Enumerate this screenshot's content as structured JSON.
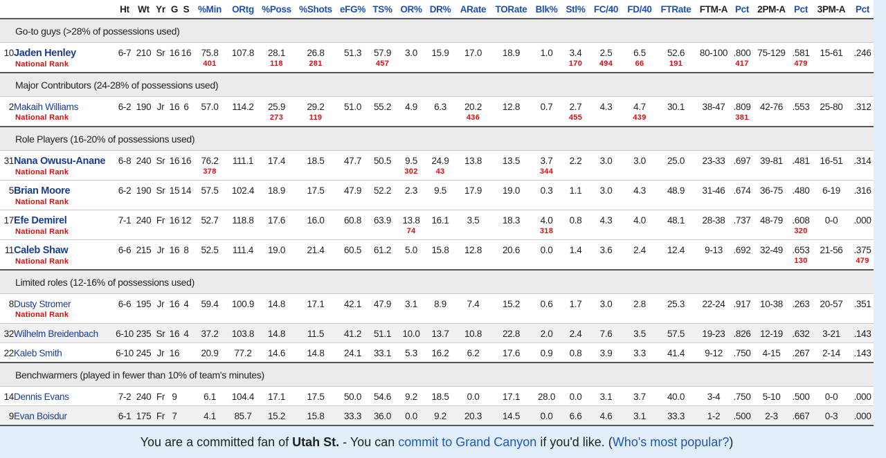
{
  "header": [
    "Ht",
    "Wt",
    "Yr",
    "G",
    "S",
    "%Min",
    "ORtg",
    "%Poss",
    "%Shots",
    "eFG%",
    "TS%",
    "OR%",
    "DR%",
    "ARate",
    "TORate",
    "Blk%",
    "Stl%",
    "FC/40",
    "FD/40",
    "FTRate",
    "FTM-A",
    "Pct",
    "2PM-A",
    "Pct",
    "3PM-A",
    "Pct"
  ],
  "groups": [
    {
      "label": "Go-to guys (>28% of possessions used)",
      "players": [
        {
          "number": "10",
          "name": "Jaden Henley",
          "bold": true,
          "ht": "6-7",
          "wt": "210",
          "yr": "Sr",
          "g": "16",
          "s": "16",
          "stats": [
            "75.8",
            "107.8",
            "28.1",
            "26.8",
            "51.3",
            "57.9",
            "3.0",
            "15.9",
            "17.0",
            "18.9",
            "1.0",
            "3.4",
            "2.5",
            "6.5",
            "52.6",
            "80-100",
            ".800",
            "75-129",
            ".581",
            "15-61",
            ".246"
          ],
          "rank_label": "National Rank",
          "ranks": [
            "401",
            null,
            "118",
            "281",
            null,
            "457",
            null,
            null,
            null,
            null,
            null,
            "170",
            "494",
            "66",
            "191",
            null,
            "417",
            null,
            "479",
            null,
            null
          ]
        }
      ]
    },
    {
      "label": "Major Contributors (24-28% of possessions used)",
      "players": [
        {
          "number": "2",
          "name": "Makaih Williams",
          "bold": false,
          "ht": "6-2",
          "wt": "190",
          "yr": "Jr",
          "g": "16",
          "s": "6",
          "stats": [
            "57.0",
            "114.2",
            "25.9",
            "29.2",
            "51.0",
            "55.2",
            "4.9",
            "6.3",
            "20.2",
            "12.8",
            "0.7",
            "2.7",
            "4.3",
            "4.7",
            "30.1",
            "38-47",
            ".809",
            "42-76",
            ".553",
            "25-80",
            ".312"
          ],
          "rank_label": "National Rank",
          "ranks": [
            null,
            null,
            "273",
            "119",
            null,
            null,
            null,
            null,
            "436",
            null,
            null,
            "455",
            null,
            "439",
            null,
            null,
            "381",
            null,
            null,
            null,
            null
          ]
        }
      ]
    },
    {
      "label": "Role Players (16-20% of possessions used)",
      "players": [
        {
          "number": "31",
          "name": "Nana Owusu-Anane",
          "bold": true,
          "ht": "6-8",
          "wt": "240",
          "yr": "Sr",
          "g": "16",
          "s": "16",
          "stats": [
            "76.2",
            "111.1",
            "17.4",
            "18.5",
            "47.7",
            "50.5",
            "9.5",
            "24.9",
            "13.8",
            "13.5",
            "3.7",
            "2.2",
            "3.0",
            "3.0",
            "25.0",
            "23-33",
            ".697",
            "39-81",
            ".481",
            "16-51",
            ".314"
          ],
          "rank_label": "National Rank",
          "ranks": [
            "378",
            null,
            null,
            null,
            null,
            null,
            "302",
            "43",
            null,
            null,
            "344",
            null,
            null,
            null,
            null,
            null,
            null,
            null,
            null,
            null,
            null
          ]
        },
        {
          "number": "5",
          "name": "Brian Moore",
          "bold": true,
          "ht": "6-2",
          "wt": "190",
          "yr": "Sr",
          "g": "15",
          "s": "14",
          "stats": [
            "57.5",
            "102.4",
            "18.9",
            "17.5",
            "47.9",
            "52.2",
            "2.3",
            "9.5",
            "17.9",
            "19.0",
            "0.3",
            "1.1",
            "3.0",
            "4.3",
            "48.9",
            "31-46",
            ".674",
            "36-75",
            ".480",
            "6-19",
            ".316"
          ],
          "rank_label": "National Rank",
          "ranks": [
            null,
            null,
            null,
            null,
            null,
            null,
            null,
            null,
            null,
            null,
            null,
            null,
            null,
            null,
            null,
            null,
            null,
            null,
            null,
            null,
            null
          ]
        },
        {
          "number": "17",
          "name": "Efe Demirel",
          "bold": true,
          "ht": "7-1",
          "wt": "240",
          "yr": "Fr",
          "g": "16",
          "s": "12",
          "stats": [
            "52.7",
            "118.8",
            "17.6",
            "16.0",
            "60.8",
            "63.9",
            "13.8",
            "16.1",
            "3.5",
            "18.3",
            "4.0",
            "0.8",
            "4.3",
            "4.0",
            "48.1",
            "28-38",
            ".737",
            "48-79",
            ".608",
            "0-0",
            ".000"
          ],
          "rank_label": "National Rank",
          "ranks": [
            null,
            null,
            null,
            null,
            null,
            null,
            "74",
            null,
            null,
            null,
            "318",
            null,
            null,
            null,
            null,
            null,
            null,
            null,
            "320",
            null,
            null
          ]
        },
        {
          "number": "11",
          "name": "Caleb Shaw",
          "bold": true,
          "ht": "6-6",
          "wt": "215",
          "yr": "Jr",
          "g": "16",
          "s": "8",
          "stats": [
            "52.5",
            "111.4",
            "19.0",
            "21.4",
            "60.5",
            "61.2",
            "5.0",
            "15.8",
            "12.8",
            "20.6",
            "0.0",
            "1.4",
            "3.6",
            "2.4",
            "12.4",
            "9-13",
            ".692",
            "32-49",
            ".653",
            "21-56",
            ".375"
          ],
          "rank_label": "National Rank",
          "ranks": [
            null,
            null,
            null,
            null,
            null,
            null,
            null,
            null,
            null,
            null,
            null,
            null,
            null,
            null,
            null,
            null,
            null,
            null,
            "130",
            null,
            "479"
          ]
        }
      ]
    },
    {
      "label": "Limited roles (12-16% of possessions used)",
      "players": [
        {
          "number": "8",
          "name": "Dusty Stromer",
          "bold": false,
          "ht": "6-6",
          "wt": "195",
          "yr": "Jr",
          "g": "16",
          "s": "4",
          "stats": [
            "59.4",
            "100.9",
            "14.8",
            "17.1",
            "42.1",
            "47.9",
            "3.1",
            "8.9",
            "7.4",
            "15.2",
            "0.6",
            "1.7",
            "3.0",
            "2.8",
            "25.3",
            "22-24",
            ".917",
            "10-38",
            ".263",
            "20-57",
            ".351"
          ],
          "rank_label": "National Rank",
          "ranks": [
            null,
            null,
            null,
            null,
            null,
            null,
            null,
            null,
            null,
            null,
            null,
            null,
            null,
            null,
            null,
            null,
            null,
            null,
            null,
            null,
            null
          ]
        },
        {
          "number": "32",
          "name": "Wilhelm Breidenbach",
          "bold": false,
          "ht": "6-10",
          "wt": "235",
          "yr": "Sr",
          "g": "16",
          "s": "4",
          "stats": [
            "37.2",
            "103.8",
            "14.8",
            "11.5",
            "41.2",
            "51.1",
            "10.0",
            "13.7",
            "10.8",
            "22.8",
            "2.0",
            "2.4",
            "7.6",
            "3.5",
            "57.5",
            "19-23",
            ".826",
            "12-19",
            ".632",
            "3-21",
            ".143"
          ]
        },
        {
          "number": "22",
          "name": "Kaleb Smith",
          "bold": false,
          "ht": "6-10",
          "wt": "245",
          "yr": "Jr",
          "g": "16",
          "s": null,
          "stats": [
            "20.9",
            "77.2",
            "14.6",
            "14.8",
            "24.1",
            "33.1",
            "5.3",
            "16.2",
            "6.2",
            "17.6",
            "0.9",
            "0.8",
            "3.9",
            "3.3",
            "41.4",
            "9-12",
            ".750",
            "4-15",
            ".267",
            "2-14",
            ".143"
          ]
        }
      ]
    },
    {
      "label": "Benchwarmers (played in fewer than 10% of team's minutes)",
      "players": [
        {
          "number": "14",
          "name": "Dennis Evans",
          "bold": false,
          "ht": "7-2",
          "wt": "240",
          "yr": "Fr",
          "g": "9",
          "s": null,
          "stats": [
            "6.1",
            "104.4",
            "17.1",
            "17.5",
            "50.0",
            "54.6",
            "9.2",
            "18.5",
            "0.0",
            "17.1",
            "28.0",
            "0.0",
            "3.1",
            "3.7",
            "40.0",
            "3-4",
            ".750",
            "5-10",
            ".500",
            "0-0",
            ".000"
          ]
        },
        {
          "number": "9",
          "name": "Evan Boisdur",
          "bold": false,
          "ht": "6-1",
          "wt": "175",
          "yr": "Fr",
          "g": "7",
          "s": null,
          "stats": [
            "4.1",
            "85.7",
            "15.2",
            "15.8",
            "33.3",
            "36.0",
            "0.0",
            "9.2",
            "20.3",
            "14.5",
            "0.0",
            "6.6",
            "4.6",
            "3.1",
            "33.3",
            "1-2",
            ".500",
            "2-3",
            ".667",
            "0-3",
            ".000"
          ]
        }
      ]
    }
  ],
  "footer": {
    "text1": "You are a committed fan of ",
    "team": "Utah St.",
    "text2": " - You can ",
    "link1": "commit to Grand Canyon",
    "text3": " if you'd like. (",
    "link2": "Who's most popular?",
    "text4": ")"
  }
}
